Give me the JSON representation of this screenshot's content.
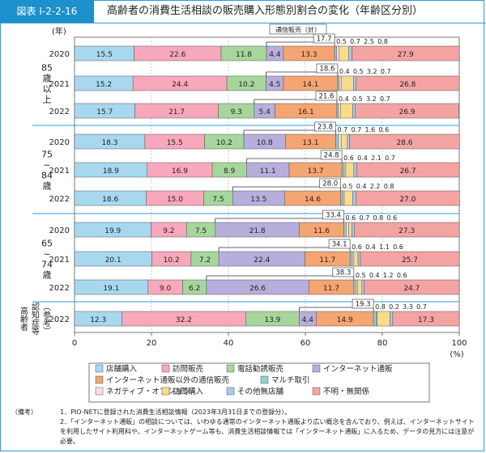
{
  "figure": {
    "label": "図表 I-2-2-16",
    "title": "高齢者の消費生活相談の販売購入形態別割合の変化（年齢区分別）"
  },
  "chart_data": {
    "type": "bar",
    "orientation": "horizontal",
    "stacked": true,
    "title": "高齢者の消費生活相談の販売購入形態別割合の変化（年齢区分別）",
    "year_axis_label": "(年)",
    "xlabel": "(%)",
    "xlim": [
      0,
      100
    ],
    "xticks": [
      0,
      20,
      40,
      60,
      80,
      100
    ],
    "bracket_label": "通信販売（計）",
    "categories_legend": [
      {
        "name": "店舗購入",
        "color": "#a8d8f0"
      },
      {
        "name": "訪問販売",
        "color": "#f8a8bc"
      },
      {
        "name": "電話勧誘販売",
        "color": "#a6d69c"
      },
      {
        "name": "インターネット通販",
        "color": "#b8aedc"
      },
      {
        "name": "インターネット通販以外の通信販売",
        "color": "#f5a571"
      },
      {
        "name": "マルチ取引",
        "color": "#8fd1cf"
      },
      {
        "name": "ネガティブ・オプション",
        "color": "#f8dce8"
      },
      {
        "name": "訪問購入",
        "color": "#f9dc8a"
      },
      {
        "name": "その他無店舗",
        "color": "#a6cbee"
      },
      {
        "name": "不明・無関係",
        "color": "#f4a3a3"
      }
    ],
    "groups": [
      {
        "label": "85歳以上",
        "rows": [
          {
            "year": "2020",
            "values": [
              15.5,
              22.6,
              11.8,
              4.4,
              13.3,
              0.5,
              0.7,
              2.5,
              0.8,
              27.9
            ],
            "total_mail": "17.7"
          },
          {
            "year": "2021",
            "values": [
              15.2,
              24.4,
              10.2,
              4.5,
              14.1,
              0.4,
              0.5,
              3.2,
              0.7,
              26.8
            ],
            "total_mail": "18.6"
          },
          {
            "year": "2022",
            "values": [
              15.7,
              21.7,
              9.3,
              5.4,
              16.1,
              0.4,
              0.5,
              3.2,
              0.7,
              26.9
            ],
            "total_mail": "21.6"
          }
        ]
      },
      {
        "label": "75~84歳",
        "rows": [
          {
            "year": "2020",
            "values": [
              18.3,
              15.5,
              10.2,
              10.8,
              13.1,
              0.7,
              0.7,
              1.6,
              0.6,
              28.6
            ],
            "total_mail": "23.8"
          },
          {
            "year": "2021",
            "values": [
              18.9,
              16.9,
              8.9,
              11.1,
              13.7,
              0.6,
              0.4,
              2.1,
              0.7,
              26.7
            ],
            "total_mail": "24.8"
          },
          {
            "year": "2022",
            "values": [
              18.6,
              15.0,
              7.5,
              13.5,
              14.6,
              0.5,
              0.4,
              2.2,
              0.8,
              27.0
            ],
            "total_mail": "28.0"
          }
        ]
      },
      {
        "label": "65~74歳",
        "rows": [
          {
            "year": "2020",
            "values": [
              19.9,
              9.2,
              7.5,
              21.8,
              11.6,
              0.6,
              0.7,
              0.8,
              0.6,
              27.3
            ],
            "total_mail": "33.4"
          },
          {
            "year": "2021",
            "values": [
              20.1,
              10.2,
              7.2,
              22.4,
              11.7,
              0.6,
              0.4,
              1.1,
              0.6,
              25.7
            ],
            "total_mail": "34.1"
          },
          {
            "year": "2022",
            "values": [
              19.1,
              9.0,
              6.2,
              26.6,
              11.7,
              0.5,
              0.4,
              1.2,
              0.6,
              24.7
            ],
            "total_mail": "38.3"
          }
        ]
      },
      {
        "label": "(参考)認知症等高齢者",
        "rows": [
          {
            "year": "2022",
            "values": [
              12.3,
              32.2,
              13.9,
              4.4,
              14.9,
              0.8,
              0.2,
              3.3,
              0.7,
              17.3
            ],
            "total_mail": "19.3"
          }
        ]
      }
    ]
  },
  "group_labels_display": [
    [
      "85",
      "歳",
      "以",
      "上"
    ],
    [
      "75",
      "~",
      "84",
      "歳"
    ],
    [
      "65",
      "~",
      "74",
      "歳"
    ],
    [
      "(参考)",
      "認知症等",
      "高齢者"
    ]
  ],
  "notes": {
    "head": "（備考）",
    "items": [
      "1．PIO-NETに登録された消費生活相談情報（2023年3月31日までの登録分）。",
      "2．「インターネット通販」の相談については、いわゆる通常のインターネット通販より広い概念を含んでおり、例えば、インターネットサイトを利用したサイト利用料や、インターネットゲーム等も、消費生活相談情報では「インターネット通販」に入るため、データの見方には注意が必要。"
    ]
  }
}
